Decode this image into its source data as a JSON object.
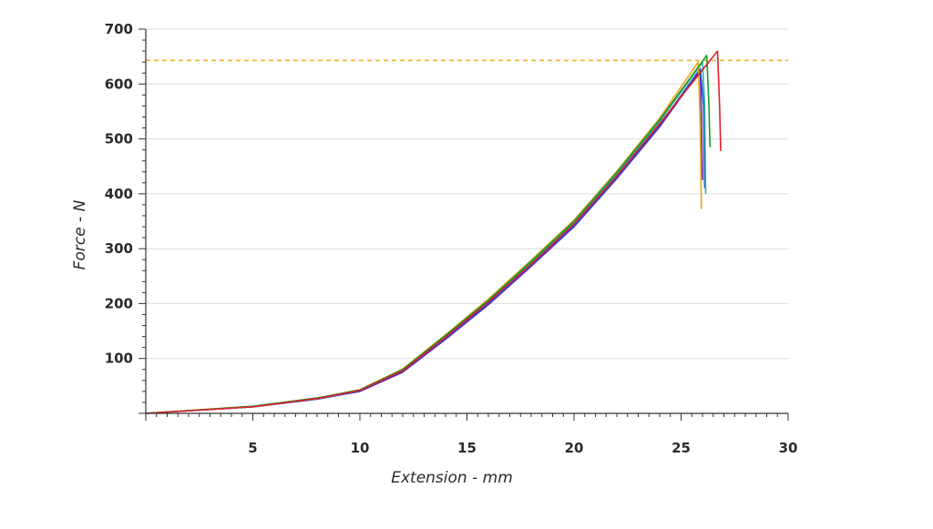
{
  "chart_data": {
    "type": "line",
    "title": "",
    "xlabel": "Extension - mm",
    "ylabel": "Force - N",
    "xlim": [
      0,
      30
    ],
    "ylim": [
      0,
      700
    ],
    "x_ticks": [
      5,
      10,
      15,
      20,
      25,
      30
    ],
    "y_ticks": [
      100,
      200,
      300,
      400,
      500,
      600,
      700
    ],
    "grid": "horizontal",
    "legend": "none",
    "reference_line": {
      "y": 643,
      "style": "dashed",
      "color": "#f0b020"
    },
    "series": [
      {
        "color": "#6a1fb5",
        "x": [
          0,
          5,
          8,
          10,
          12,
          14,
          16,
          18,
          20,
          22,
          24,
          25.9,
          25.95,
          26.0
        ],
        "y": [
          0,
          12,
          26,
          40,
          75,
          135,
          198,
          268,
          340,
          428,
          522,
          625,
          540,
          425
        ]
      },
      {
        "color": "#1f4fd0",
        "x": [
          0,
          5,
          8,
          10,
          12,
          14,
          16,
          18,
          20,
          22,
          24,
          25.9,
          26.05,
          26.1
        ],
        "y": [
          0,
          12,
          26,
          41,
          77,
          137,
          200,
          270,
          342,
          430,
          525,
          628,
          560,
          410
        ]
      },
      {
        "color": "#2bb0a8",
        "x": [
          0,
          5,
          8,
          10,
          12,
          14,
          16,
          18,
          20,
          22,
          24,
          26.0,
          26.1,
          26.15
        ],
        "y": [
          0,
          12,
          27,
          42,
          79,
          140,
          204,
          275,
          348,
          436,
          532,
          640,
          560,
          400
        ]
      },
      {
        "color": "#e6a817",
        "x": [
          0,
          5,
          8,
          10,
          12,
          14,
          16,
          18,
          20,
          22,
          24,
          25.8,
          25.9,
          25.95
        ],
        "y": [
          0,
          13,
          27,
          43,
          81,
          143,
          208,
          279,
          352,
          441,
          538,
          640,
          520,
          372
        ]
      },
      {
        "color": "#1a9a2a",
        "x": [
          0,
          5,
          8,
          10,
          12,
          14,
          16,
          18,
          20,
          22,
          24,
          26.2,
          26.3,
          26.35
        ],
        "y": [
          0,
          13,
          28,
          43,
          80,
          142,
          206,
          277,
          350,
          439,
          535,
          652,
          560,
          485
        ]
      },
      {
        "color": "#e01f2a",
        "x": [
          0,
          5,
          8,
          10,
          12,
          14,
          16,
          18,
          20,
          22,
          24,
          26.7,
          26.8,
          26.85
        ],
        "y": [
          0,
          12,
          27,
          42,
          78,
          139,
          203,
          272,
          345,
          433,
          528,
          660,
          560,
          478
        ]
      }
    ]
  }
}
